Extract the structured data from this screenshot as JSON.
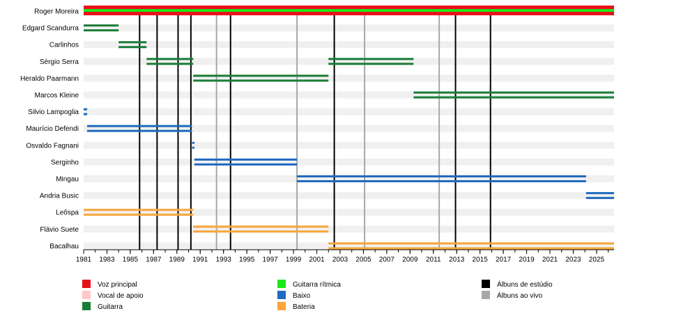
{
  "chart_data": {
    "type": "timeline",
    "x_range": [
      1981.0,
      2026.5
    ],
    "tick_years": [
      "1981",
      "1983",
      "1985",
      "1987",
      "1989",
      "1991",
      "1993",
      "1995",
      "1997",
      "1999",
      "2001",
      "2003",
      "2005",
      "2007",
      "2009",
      "2011",
      "2013",
      "2015",
      "2017",
      "2019",
      "2021",
      "2023",
      "2025"
    ],
    "colors": {
      "vocal": "#e8121a",
      "backing": "#ffc8c8",
      "guitar": "#1a7d36",
      "rhythm": "#1ae81a",
      "bass": "#1f6bbf",
      "drums": "#f8a53a",
      "studio": "#000000",
      "live": "#a8a8a8"
    },
    "members": [
      {
        "name": "Roger Moreira",
        "bars": [
          {
            "role": "vocal",
            "start": 1981.0,
            "end": 2026.5
          },
          {
            "role": "rhythm",
            "start": 1981.0,
            "end": 2026.5
          },
          {
            "role": "vocal",
            "start": 1981.0,
            "end": 2026.5
          }
        ]
      },
      {
        "name": "Edgard Scandurra",
        "bars": [
          {
            "role": "guitar",
            "start": 1981.0,
            "end": 1984.0
          }
        ]
      },
      {
        "name": "Carlinhos",
        "bars": [
          {
            "role": "guitar",
            "start": 1984.0,
            "end": 1986.4
          }
        ]
      },
      {
        "name": "Sérgio Serra",
        "bars": [
          {
            "role": "guitar",
            "start": 1986.4,
            "end": 1990.4
          },
          {
            "role": "guitar",
            "start": 2002.0,
            "end": 2009.3
          }
        ]
      },
      {
        "name": "Heraldo Paarmann",
        "bars": [
          {
            "role": "guitar",
            "start": 1990.4,
            "end": 2002.0
          }
        ]
      },
      {
        "name": "Marcos Kleine",
        "bars": [
          {
            "role": "guitar",
            "start": 2009.3,
            "end": 2026.5
          }
        ]
      },
      {
        "name": "Silvio Lampoglia",
        "bars": [
          {
            "role": "bass",
            "start": 1981.0,
            "end": 1981.3
          }
        ]
      },
      {
        "name": "Maurício Defendi",
        "bars": [
          {
            "role": "bass",
            "start": 1981.3,
            "end": 1990.3
          }
        ]
      },
      {
        "name": "Osvaldo Fagnani",
        "bars": [
          {
            "role": "bass",
            "start": 1990.3,
            "end": 1990.5
          }
        ]
      },
      {
        "name": "Serginho",
        "bars": [
          {
            "role": "bass",
            "start": 1990.5,
            "end": 1999.3
          }
        ]
      },
      {
        "name": "Mingau",
        "bars": [
          {
            "role": "bass",
            "start": 1999.3,
            "end": 2024.1
          }
        ]
      },
      {
        "name": "Andria Busic",
        "bars": [
          {
            "role": "bass",
            "start": 2024.1,
            "end": 2026.5
          }
        ]
      },
      {
        "name": "Leôspa",
        "bars": [
          {
            "role": "drums",
            "start": 1981.0,
            "end": 1990.4
          }
        ]
      },
      {
        "name": "Flávio Suete",
        "bars": [
          {
            "role": "drums",
            "start": 1990.4,
            "end": 2002.0
          }
        ]
      },
      {
        "name": "Bacalhau",
        "bars": [
          {
            "role": "drums",
            "start": 2002.0,
            "end": 2026.5
          }
        ]
      }
    ],
    "studio_albums": [
      1985.8,
      1987.3,
      1989.1,
      1990.2,
      1993.6,
      2002.5,
      2012.9,
      2015.9
    ],
    "live_albums": [
      1992.4,
      1999.3,
      2005.1,
      2011.5
    ],
    "legend": [
      {
        "label": "Voz principal",
        "key": "vocal"
      },
      {
        "label": "Vocal de apoio",
        "key": "backing"
      },
      {
        "label": "Guitarra",
        "key": "guitar"
      },
      {
        "label": "Guitarra rítmica",
        "key": "rhythm"
      },
      {
        "label": "Baixo",
        "key": "bass"
      },
      {
        "label": "Bateria",
        "key": "drums"
      },
      {
        "label": "Álbuns de estúdio",
        "key": "studio"
      },
      {
        "label": "Álbuns ao vivo",
        "key": "live"
      }
    ]
  }
}
